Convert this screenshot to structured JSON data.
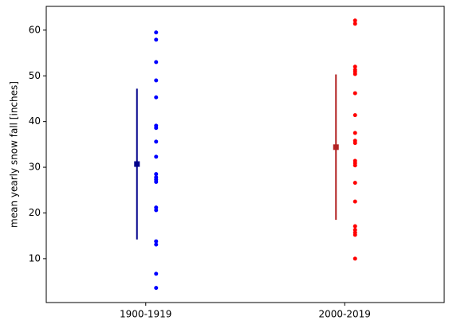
{
  "chart_data": {
    "type": "strip",
    "ylabel": "mean yearly snow fall [inches]",
    "categories": [
      "1900-1919",
      "2000-2019"
    ],
    "groups": [
      {
        "color": "#0000ff",
        "mean_color": "#00008b",
        "values": [
          59.5,
          57.9,
          53.0,
          49.0,
          45.3,
          39.1,
          38.6,
          35.6,
          32.3,
          28.5,
          27.8,
          27.3,
          26.8,
          21.2,
          20.6,
          13.8,
          13.1,
          6.7,
          3.6
        ],
        "mean": 30.7,
        "error": 16.5
      },
      {
        "color": "#ff0000",
        "mean_color": "#b22222",
        "values": [
          62.1,
          61.4,
          52.0,
          51.3,
          50.9,
          50.4,
          46.2,
          41.4,
          37.5,
          35.8,
          35.3,
          31.4,
          30.9,
          30.4,
          26.6,
          22.5,
          17.1,
          16.3,
          15.7,
          15.2,
          10.0
        ],
        "mean": 34.4,
        "error": 15.9
      }
    ],
    "ylim": [
      0.4,
      65.2
    ],
    "yticks": [
      10,
      20,
      30,
      40,
      50,
      60
    ]
  }
}
